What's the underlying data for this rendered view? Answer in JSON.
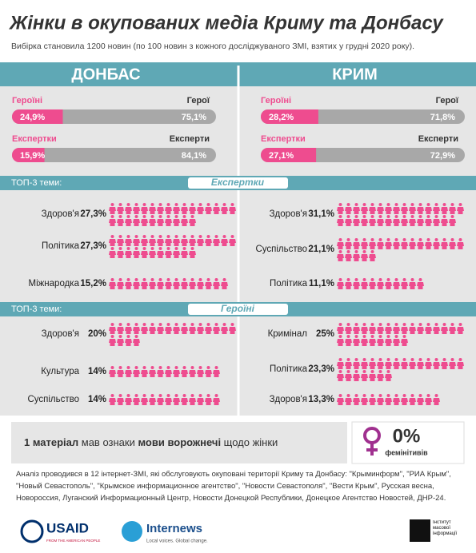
{
  "title": "Жінки в окупованих медіа Криму та Донбасу",
  "subtitle": "Вибірка становила 1200 новин (по 100 новин з кожного досліджуваного ЗМІ, взятих у грудні 2020 року).",
  "regions": [
    {
      "name": "ДОНБАС",
      "bars": [
        {
          "left_label": "Героїні",
          "right_label": "Герої",
          "left": 24.9,
          "left_text": "24,9%",
          "right": 75.1,
          "right_text": "75,1%"
        },
        {
          "left_label": "Експертки",
          "right_label": "Експерти",
          "left": 15.9,
          "left_text": "15,9%",
          "right": 84.1,
          "right_text": "84,1%"
        }
      ]
    },
    {
      "name": "КРИМ",
      "bars": [
        {
          "left_label": "Героїні",
          "right_label": "Герої",
          "left": 28.2,
          "left_text": "28,2%",
          "right": 71.8,
          "right_text": "71,8%"
        },
        {
          "left_label": "Експертки",
          "right_label": "Експерти",
          "left": 27.1,
          "left_text": "27,1%",
          "right": 72.9,
          "right_text": "72,9%"
        }
      ]
    }
  ],
  "sections": [
    {
      "label": "ТОП-3 теми:",
      "title": "Експертки",
      "columns": [
        [
          {
            "topic": "Здоров'я",
            "value": 27.3,
            "value_label": "27,3%"
          },
          {
            "topic": "Політика",
            "value": 27.3,
            "value_label": "27,3%"
          },
          {
            "topic": "Міжнародка",
            "value": 15.2,
            "value_label": "15,2%"
          }
        ],
        [
          {
            "topic": "Здоров'я",
            "value": 31.1,
            "value_label": "31,1%"
          },
          {
            "topic": "Суспільство",
            "value": 21.1,
            "value_label": "21,1%"
          },
          {
            "topic": "Політика",
            "value": 11.1,
            "value_label": "11,1%"
          }
        ]
      ]
    },
    {
      "label": "ТОП-3 теми:",
      "title": "Героїні",
      "columns": [
        [
          {
            "topic": "Здоров'я",
            "value": 20,
            "value_label": "20%"
          },
          {
            "topic": "Культура",
            "value": 14,
            "value_label": "14%"
          },
          {
            "topic": "Суспільство",
            "value": 14,
            "value_label": "14%"
          }
        ],
        [
          {
            "topic": "Кримінал",
            "value": 25,
            "value_label": "25%"
          },
          {
            "topic": "Політика",
            "value": 23.3,
            "value_label": "23,3%"
          },
          {
            "topic": "Здоров'я",
            "value": 13.3,
            "value_label": "13,3%"
          }
        ]
      ]
    }
  ],
  "statement": [
    "1 матеріал",
    " мав ознаки ",
    "мови ворожнечі",
    " щодо жінки"
  ],
  "feminitives": {
    "value": "0%",
    "label": "фемінітивів"
  },
  "note": "Аналіз проводився в 12 інтернет-ЗМІ, які обслуговують окуповані території Криму та Донбасу: \"Крыминформ\", \"РИА Крым\", \"Новый Севастополь\", \"Крымское информационное агентство\", \"Новости Севастополя\", \"Вести Крым\", Русская весна, Новороссия, Луганский Информационный Центр, Новости Донецкой Республики, Донецкое Агентство Новостей, ДНР-24.",
  "logos": {
    "usaid": "USAID",
    "usaid_tag": "FROM THE AMERICAN PEOPLE",
    "internews": "Internews",
    "internews_tag": "Local voices. Global change.",
    "imi": "Інститут масової інформації"
  }
}
